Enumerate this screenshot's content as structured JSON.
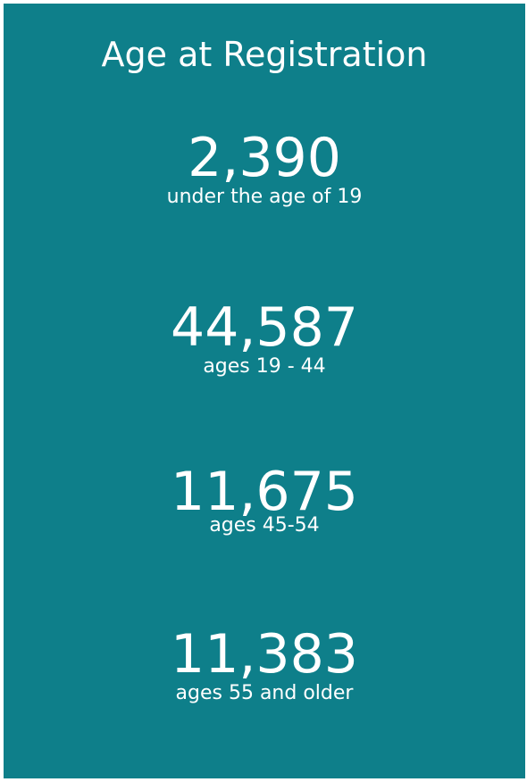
{
  "title": "Age at Registration",
  "stats": [
    {
      "value": "2,390",
      "label": "under the age of 19"
    },
    {
      "value": "44,587",
      "label": "ages 19 - 44"
    },
    {
      "value": "11,675",
      "label": "ages 45-54"
    },
    {
      "value": "11,383",
      "label": "ages 55 and older"
    }
  ]
}
